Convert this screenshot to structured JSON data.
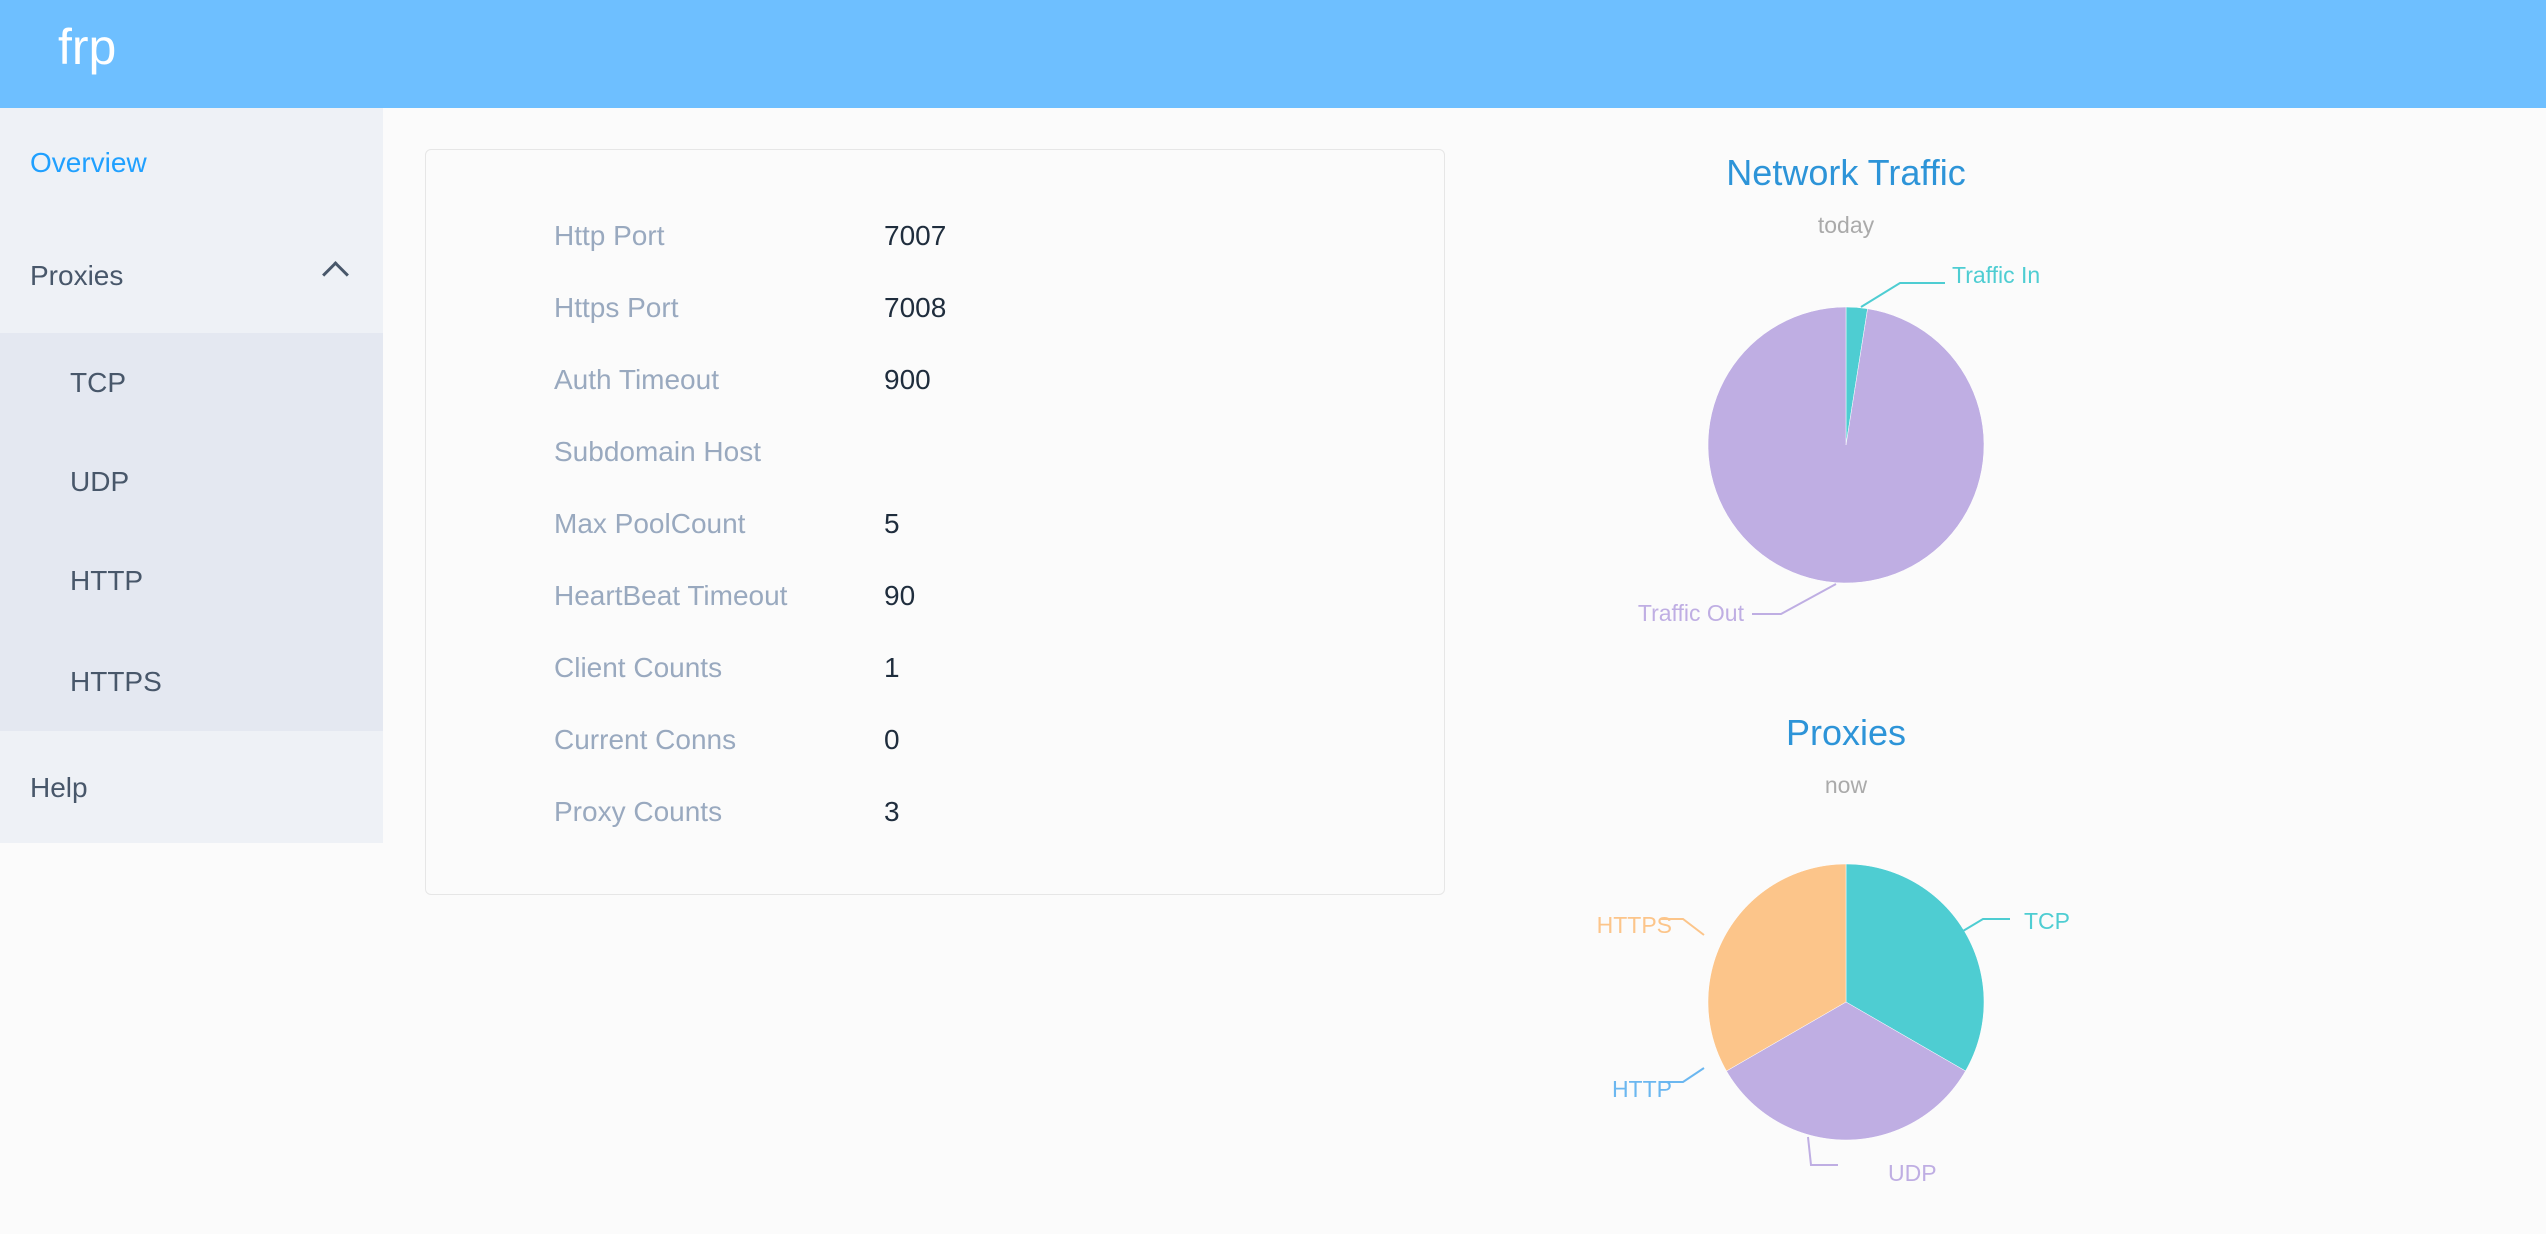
{
  "header": {
    "brand": "frp"
  },
  "sidebar": {
    "overview": "Overview",
    "proxies": "Proxies",
    "proxies_children": [
      "TCP",
      "UDP",
      "HTTP",
      "HTTPS"
    ],
    "help": "Help"
  },
  "overview": {
    "rows": [
      {
        "label": "Http Port",
        "value": "7007"
      },
      {
        "label": "Https Port",
        "value": "7008"
      },
      {
        "label": "Auth Timeout",
        "value": "900"
      },
      {
        "label": "Subdomain Host",
        "value": ""
      },
      {
        "label": "Max PoolCount",
        "value": "5"
      },
      {
        "label": "HeartBeat Timeout",
        "value": "90"
      },
      {
        "label": "Client Counts",
        "value": "1"
      },
      {
        "label": "Current Conns",
        "value": "0"
      },
      {
        "label": "Proxy Counts",
        "value": "3"
      }
    ]
  },
  "chart_data": [
    {
      "type": "pie",
      "title": "Network Traffic",
      "subtitle": "today",
      "slices": [
        {
          "name": "Traffic In",
          "value": 2.5,
          "color": "#4ecdd2"
        },
        {
          "name": "Traffic Out",
          "value": 97.5,
          "color": "#bfaee3"
        }
      ]
    },
    {
      "type": "pie",
      "title": "Proxies",
      "subtitle": "now",
      "slices": [
        {
          "name": "TCP",
          "value": 1,
          "color": "#4ecdd2"
        },
        {
          "name": "UDP",
          "value": 1,
          "color": "#bfaee3"
        },
        {
          "name": "HTTP",
          "value": 0,
          "color": "#6bb7f0"
        },
        {
          "name": "HTTPS",
          "value": 1,
          "color": "#fcc58a"
        }
      ]
    }
  ],
  "colors": {
    "header": "#6ebfff",
    "active": "#20a0ff",
    "title": "#2d94d8"
  }
}
